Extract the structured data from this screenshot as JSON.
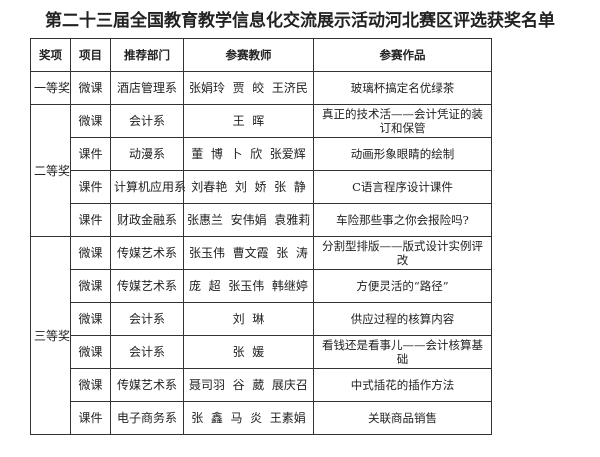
{
  "title": "第二十三届全国教育教学信息化交流展示活动河北赛区评选获奖名单",
  "headers": [
    "奖项",
    "项目",
    "推荐部门",
    "参赛教师",
    "参赛作品"
  ],
  "groups": [
    {
      "award": "一等奖",
      "rows": [
        {
          "type": "微课",
          "dept": "酒店管理系",
          "teachers": "张娟玲  贾  皎  王济民",
          "work": "玻璃杯搞定名优绿茶"
        }
      ]
    },
    {
      "award": "二等奖",
      "rows": [
        {
          "type": "微课",
          "dept": "会计系",
          "teachers": "王  晖",
          "work": "真正的技术活——会计凭证的装订和保管"
        },
        {
          "type": "课件",
          "dept": "动漫系",
          "teachers": "董  博  卜  欣  张爱辉",
          "work": "动画形象眼睛的绘制"
        },
        {
          "type": "课件",
          "dept": "计算机应用系",
          "teachers": "刘春艳  刘  娇  张  静",
          "work": "C语言程序设计课件"
        },
        {
          "type": "课件",
          "dept": "财政金融系",
          "teachers": "张惠兰  安伟娟  袁雅莉",
          "work": "车险那些事之你会报险吗?"
        }
      ]
    },
    {
      "award": "三等奖",
      "rows": [
        {
          "type": "微课",
          "dept": "传媒艺术系",
          "teachers": "张玉伟  曹文霞  张  涛",
          "work": "分割型排版——版式设计实例评改"
        },
        {
          "type": "微课",
          "dept": "传媒艺术系",
          "teachers": "庞  超  张玉伟  韩继婷",
          "work": "方便灵活的“路径”"
        },
        {
          "type": "微课",
          "dept": "会计系",
          "teachers": "刘  琳",
          "work": "供应过程的核算内容"
        },
        {
          "type": "微课",
          "dept": "会计系",
          "teachers": "张  媛",
          "work": "看钱还是看事儿——会计核算基础"
        },
        {
          "type": "微课",
          "dept": "传媒艺术系",
          "teachers": "聂司羽  谷  葳  展庆召",
          "work": "中式插花的插作方法"
        },
        {
          "type": "课件",
          "dept": "电子商务系",
          "teachers": "张  鑫  马  炎  王素娟",
          "work": "关联商品销售"
        }
      ]
    }
  ]
}
